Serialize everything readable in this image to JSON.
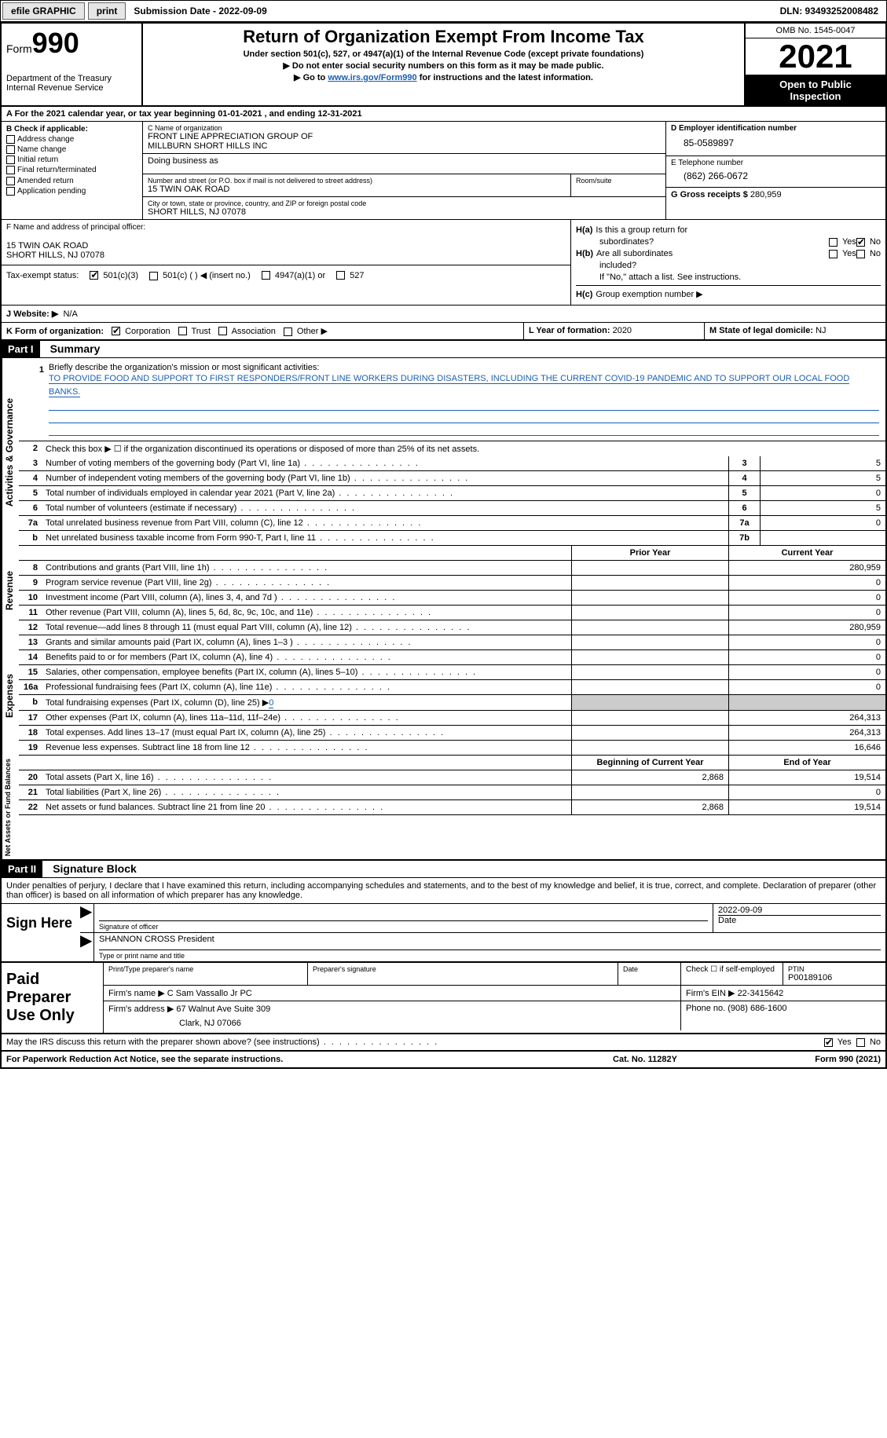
{
  "topbar": {
    "efile_label": "efile GRAPHIC",
    "print_btn": "print",
    "sub_date_label": "Submission Date - 2022-09-09",
    "dln": "DLN: 93493252008482"
  },
  "header": {
    "form_label": "Form",
    "form_num": "990",
    "dept": "Department of the Treasury",
    "irs": "Internal Revenue Service",
    "title": "Return of Organization Exempt From Income Tax",
    "subtitle1": "Under section 501(c), 527, or 4947(a)(1) of the Internal Revenue Code (except private foundations)",
    "subtitle2": "▶ Do not enter social security numbers on this form as it may be made public.",
    "subtitle3_pre": "▶ Go to ",
    "subtitle3_link": "www.irs.gov/Form990",
    "subtitle3_post": " for instructions and the latest information.",
    "omb": "OMB No. 1545-0047",
    "year": "2021",
    "inspect1": "Open to Public",
    "inspect2": "Inspection"
  },
  "row_a": "A For the 2021 calendar year, or tax year beginning 01-01-2021   , and ending 12-31-2021",
  "col_b": {
    "header": "B Check if applicable:",
    "opts": [
      "Address change",
      "Name change",
      "Initial return",
      "Final return/terminated",
      "Amended return",
      "Application pending"
    ]
  },
  "org": {
    "name_lbl": "C Name of organization",
    "name1": "FRONT LINE APPRECIATION GROUP OF",
    "name2": "MILLBURN SHORT HILLS INC",
    "dba_lbl": "Doing business as",
    "street_lbl": "Number and street (or P.O. box if mail is not delivered to street address)",
    "street": "15 TWIN OAK ROAD",
    "suite_lbl": "Room/suite",
    "city_lbl": "City or town, state or province, country, and ZIP or foreign postal code",
    "city": "SHORT HILLS, NJ  07078"
  },
  "ein": {
    "lbl": "D Employer identification number",
    "val": "85-0589897"
  },
  "tel": {
    "lbl": "E Telephone number",
    "val": "(862) 266-0672"
  },
  "gross": {
    "lbl": "G Gross receipts $",
    "val": "280,959"
  },
  "officer": {
    "lbl": "F Name and address of principal officer:",
    "line1": "15 TWIN OAK ROAD",
    "line2": "SHORT HILLS, NJ  07078"
  },
  "h": {
    "ha_lbl": "H(a)",
    "ha_txt1": "Is this a group return for",
    "ha_txt2": "subordinates?",
    "hb_lbl": "H(b)",
    "hb_txt1": "Are all subordinates",
    "hb_txt2": "included?",
    "hb_note": "If \"No,\" attach a list. See instructions.",
    "hc_lbl": "H(c)",
    "hc_txt": "Group exemption number ▶",
    "yes": "Yes",
    "no": "No"
  },
  "tax_status": {
    "lbl": "Tax-exempt status:",
    "o1": "501(c)(3)",
    "o2": "501(c) (  ) ◀ (insert no.)",
    "o3": "4947(a)(1) or",
    "o4": "527"
  },
  "website": {
    "lbl": "J   Website: ▶",
    "val": "N/A"
  },
  "korg": {
    "k_lbl": "K Form of organization:",
    "k_opts": [
      "Corporation",
      "Trust",
      "Association",
      "Other ▶"
    ],
    "l_lbl": "L Year of formation:",
    "l_val": "2020",
    "m_lbl": "M State of legal domicile:",
    "m_val": "NJ"
  },
  "part1": {
    "label": "Part I",
    "title": "Summary"
  },
  "mission": {
    "num": "1",
    "lbl": "Briefly describe the organization's mission or most significant activities:",
    "text": "TO PROVIDE FOOD AND SUPPORT TO FIRST RESPONDERS/FRONT LINE WORKERS DURING DISASTERS, INCLUDING THE CURRENT COVID-19 PANDEMIC AND TO SUPPORT OUR LOCAL FOOD BANKS."
  },
  "line2": {
    "num": "2",
    "txt": "Check this box ▶ ☐ if the organization discontinued its operations or disposed of more than 25% of its net assets."
  },
  "gov_lines": [
    {
      "num": "3",
      "txt": "Number of voting members of the governing body (Part VI, line 1a)",
      "box": "3",
      "val": "5"
    },
    {
      "num": "4",
      "txt": "Number of independent voting members of the governing body (Part VI, line 1b)",
      "box": "4",
      "val": "5"
    },
    {
      "num": "5",
      "txt": "Total number of individuals employed in calendar year 2021 (Part V, line 2a)",
      "box": "5",
      "val": "0"
    },
    {
      "num": "6",
      "txt": "Total number of volunteers (estimate if necessary)",
      "box": "6",
      "val": "5"
    },
    {
      "num": "7a",
      "txt": "Total unrelated business revenue from Part VIII, column (C), line 12",
      "box": "7a",
      "val": "0"
    },
    {
      "num": "b",
      "txt": "Net unrelated business taxable income from Form 990-T, Part I, line 11",
      "box": "7b",
      "val": ""
    }
  ],
  "col_headers": {
    "prior": "Prior Year",
    "curr": "Current Year"
  },
  "rev_lines": [
    {
      "num": "8",
      "txt": "Contributions and grants (Part VIII, line 1h)",
      "prior": "",
      "curr": "280,959"
    },
    {
      "num": "9",
      "txt": "Program service revenue (Part VIII, line 2g)",
      "prior": "",
      "curr": "0"
    },
    {
      "num": "10",
      "txt": "Investment income (Part VIII, column (A), lines 3, 4, and 7d )",
      "prior": "",
      "curr": "0"
    },
    {
      "num": "11",
      "txt": "Other revenue (Part VIII, column (A), lines 5, 6d, 8c, 9c, 10c, and 11e)",
      "prior": "",
      "curr": "0"
    },
    {
      "num": "12",
      "txt": "Total revenue—add lines 8 through 11 (must equal Part VIII, column (A), line 12)",
      "prior": "",
      "curr": "280,959"
    }
  ],
  "exp_lines": [
    {
      "num": "13",
      "txt": "Grants and similar amounts paid (Part IX, column (A), lines 1–3 )",
      "prior": "",
      "curr": "0"
    },
    {
      "num": "14",
      "txt": "Benefits paid to or for members (Part IX, column (A), line 4)",
      "prior": "",
      "curr": "0"
    },
    {
      "num": "15",
      "txt": "Salaries, other compensation, employee benefits (Part IX, column (A), lines 5–10)",
      "prior": "",
      "curr": "0"
    },
    {
      "num": "16a",
      "txt": "Professional fundraising fees (Part IX, column (A), line 11e)",
      "prior": "",
      "curr": "0"
    }
  ],
  "line16b": {
    "num": "b",
    "txt_pre": "Total fundraising expenses (Part IX, column (D), line 25) ▶",
    "val": "0"
  },
  "exp_lines2": [
    {
      "num": "17",
      "txt": "Other expenses (Part IX, column (A), lines 11a–11d, 11f–24e)",
      "prior": "",
      "curr": "264,313"
    },
    {
      "num": "18",
      "txt": "Total expenses. Add lines 13–17 (must equal Part IX, column (A), line 25)",
      "prior": "",
      "curr": "264,313"
    },
    {
      "num": "19",
      "txt": "Revenue less expenses. Subtract line 18 from line 12",
      "prior": "",
      "curr": "16,646"
    }
  ],
  "na_headers": {
    "begin": "Beginning of Current Year",
    "end": "End of Year"
  },
  "na_lines": [
    {
      "num": "20",
      "txt": "Total assets (Part X, line 16)",
      "prior": "2,868",
      "curr": "19,514"
    },
    {
      "num": "21",
      "txt": "Total liabilities (Part X, line 26)",
      "prior": "",
      "curr": "0"
    },
    {
      "num": "22",
      "txt": "Net assets or fund balances. Subtract line 21 from line 20",
      "prior": "2,868",
      "curr": "19,514"
    }
  ],
  "part2": {
    "label": "Part II",
    "title": "Signature Block"
  },
  "penalties": "Under penalties of perjury, I declare that I have examined this return, including accompanying schedules and statements, and to the best of my knowledge and belief, it is true, correct, and complete. Declaration of preparer (other than officer) is based on all information of which preparer has any knowledge.",
  "sign": {
    "here": "Sign Here",
    "sig_lbl": "Signature of officer",
    "date_lbl": "Date",
    "date_val": "2022-09-09",
    "name_val": "SHANNON CROSS  President",
    "name_lbl": "Type or print name and title"
  },
  "paid": {
    "title": "Paid Preparer Use Only",
    "prep_name_lbl": "Print/Type preparer's name",
    "prep_sig_lbl": "Preparer's signature",
    "date_lbl": "Date",
    "check_lbl": "Check ☐ if self-employed",
    "ptin_lbl": "PTIN",
    "ptin_val": "P00189106",
    "firm_name_lbl": "Firm's name    ▶",
    "firm_name": "C Sam Vassallo Jr PC",
    "firm_ein_lbl": "Firm's EIN ▶",
    "firm_ein": "22-3415642",
    "firm_addr_lbl": "Firm's address ▶",
    "firm_addr1": "67 Walnut Ave Suite 309",
    "firm_addr2": "Clark, NJ  07066",
    "phone_lbl": "Phone no.",
    "phone": "(908) 686-1600"
  },
  "discuss": {
    "txt": "May the IRS discuss this return with the preparer shown above? (see instructions)",
    "yes": "Yes",
    "no": "No"
  },
  "footer": {
    "left": "For Paperwork Reduction Act Notice, see the separate instructions.",
    "mid": "Cat. No. 11282Y",
    "right": "Form 990 (2021)"
  },
  "side_tabs": {
    "gov": "Activities & Governance",
    "rev": "Revenue",
    "exp": "Expenses",
    "na": "Net Assets or Fund Balances"
  }
}
